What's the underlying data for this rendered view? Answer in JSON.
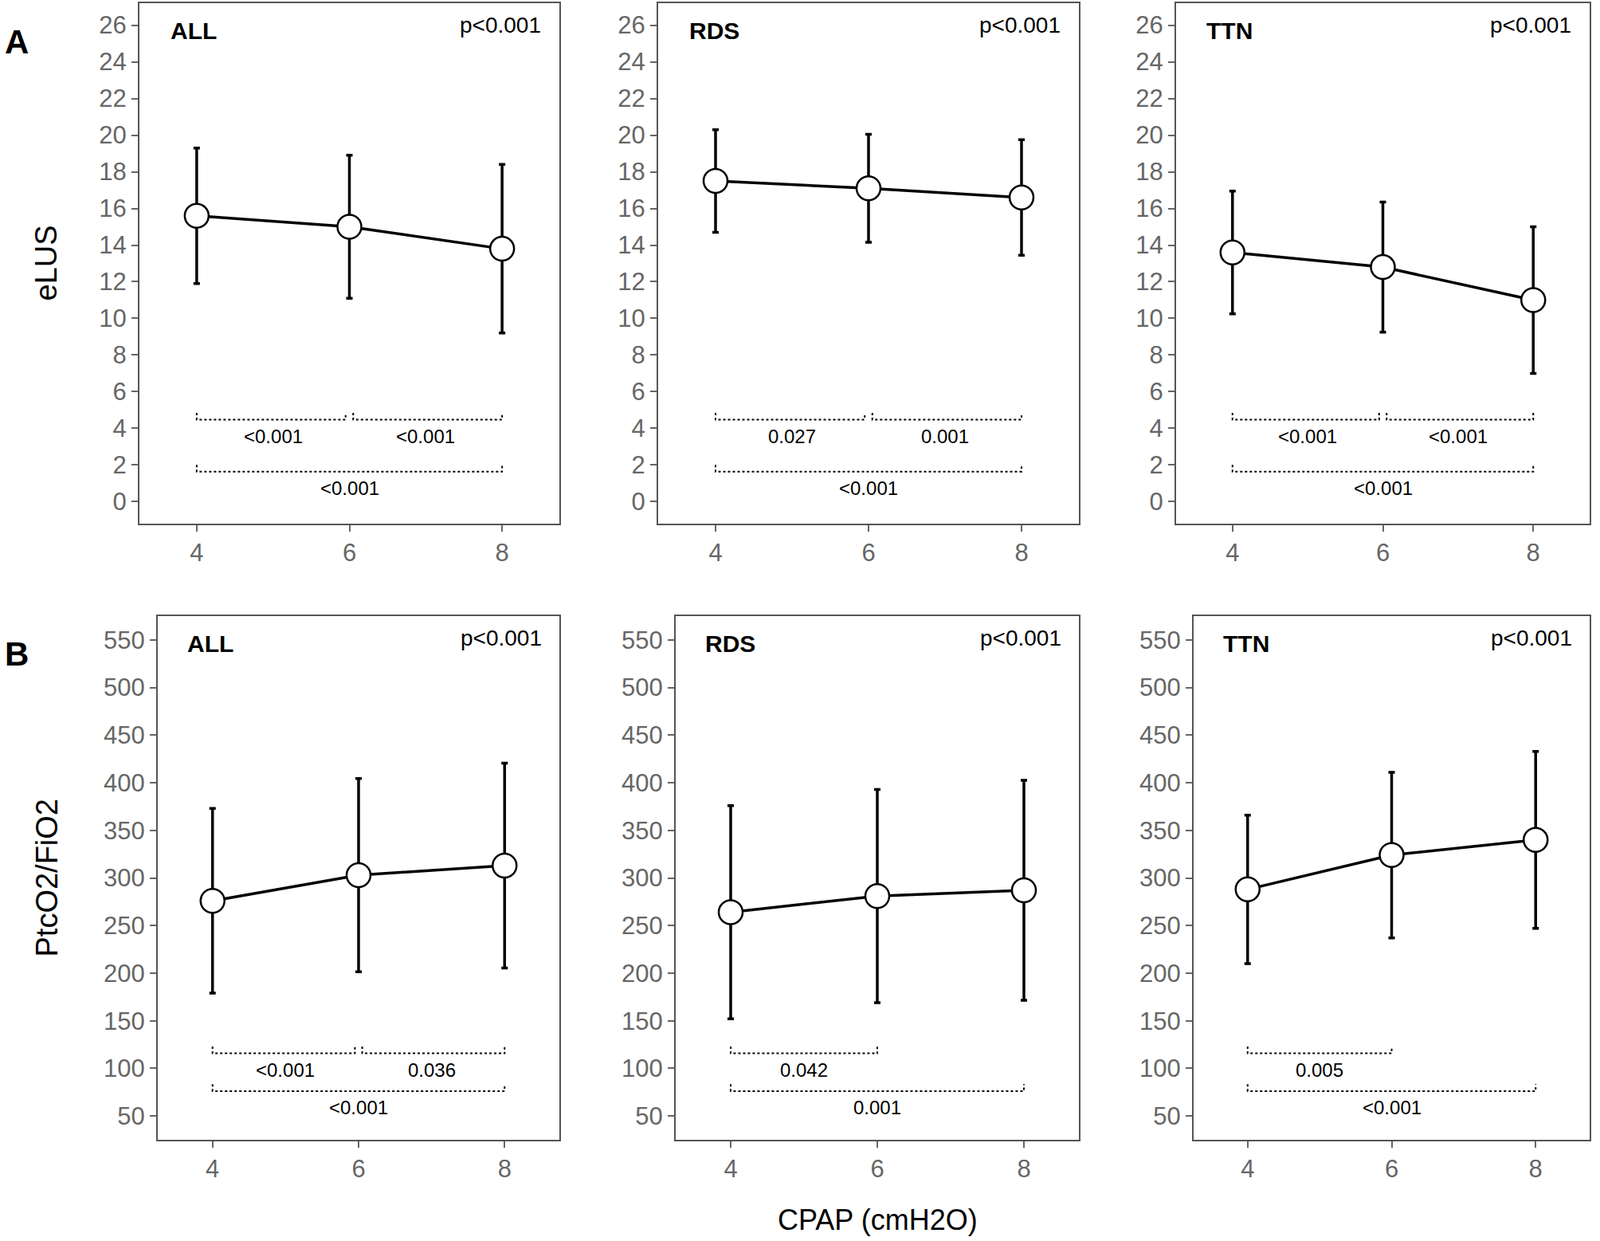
{
  "chart_data": [
    {
      "type": "line",
      "panel_label": "A",
      "y_label": "eLUS",
      "title": "ALL",
      "p_value": "p<0.001",
      "x": [
        4,
        6,
        8
      ],
      "values": [
        15.6,
        15.0,
        13.8
      ],
      "error": [
        3.7,
        3.9,
        4.6
      ],
      "color": "#000000",
      "marker": "circle",
      "grid": false,
      "xlim": [
        3.25,
        8.75
      ],
      "xticks": [
        4,
        6,
        8
      ],
      "ylim": [
        -1.2,
        27.2
      ],
      "yticks": [
        0,
        2,
        4,
        6,
        8,
        10,
        12,
        14,
        16,
        18,
        20,
        22,
        24,
        26
      ],
      "comparisons": [
        {
          "x": [
            4,
            6
          ],
          "label": "<0.001"
        },
        {
          "x": [
            6,
            8
          ],
          "label": "<0.001"
        },
        {
          "x": [
            4,
            8
          ],
          "label": "<0.001"
        }
      ]
    },
    {
      "type": "line",
      "title": "RDS",
      "p_value": "p<0.001",
      "x": [
        4,
        6,
        8
      ],
      "values": [
        17.5,
        17.1,
        16.6
      ],
      "error": [
        2.8,
        2.95,
        3.15
      ],
      "color": "#000000",
      "marker": "circle",
      "grid": false,
      "xlim": [
        3.25,
        8.75
      ],
      "xticks": [
        4,
        6,
        8
      ],
      "ylim": [
        -1.2,
        27.2
      ],
      "yticks": [
        0,
        2,
        4,
        6,
        8,
        10,
        12,
        14,
        16,
        18,
        20,
        22,
        24,
        26
      ],
      "comparisons": [
        {
          "x": [
            4,
            6
          ],
          "label": "0.027"
        },
        {
          "x": [
            6,
            8
          ],
          "label": "0.001"
        },
        {
          "x": [
            4,
            8
          ],
          "label": "<0.001"
        }
      ]
    },
    {
      "type": "line",
      "title": "TTN",
      "p_value": "p<0.001",
      "x": [
        4,
        6,
        8
      ],
      "values": [
        13.6,
        12.8,
        11.0
      ],
      "error": [
        3.35,
        3.55,
        4.0
      ],
      "color": "#000000",
      "marker": "circle",
      "grid": false,
      "xlim": [
        3.25,
        8.75
      ],
      "xticks": [
        4,
        6,
        8
      ],
      "ylim": [
        -1.2,
        27.2
      ],
      "yticks": [
        0,
        2,
        4,
        6,
        8,
        10,
        12,
        14,
        16,
        18,
        20,
        22,
        24,
        26
      ],
      "comparisons": [
        {
          "x": [
            4,
            6
          ],
          "label": "<0.001"
        },
        {
          "x": [
            6,
            8
          ],
          "label": "<0.001"
        },
        {
          "x": [
            4,
            8
          ],
          "label": "<0.001"
        }
      ]
    },
    {
      "type": "line",
      "panel_label": "B",
      "y_label": "PtcO2/FiO2",
      "title": "ALL",
      "p_value": "p<0.001",
      "x": [
        4,
        6,
        8
      ],
      "values": [
        276,
        303,
        313
      ],
      "error": [
        97,
        101.5,
        107.5
      ],
      "color": "#000000",
      "marker": "circle",
      "grid": false,
      "xlim": [
        3.25,
        8.75
      ],
      "xticks": [
        4,
        6,
        8
      ],
      "ylim": [
        25,
        575
      ],
      "yticks": [
        50,
        100,
        150,
        200,
        250,
        300,
        350,
        400,
        450,
        500,
        550
      ],
      "comparisons": [
        {
          "x": [
            4,
            6
          ],
          "label": "<0.001"
        },
        {
          "x": [
            6,
            8
          ],
          "label": "0.036"
        },
        {
          "x": [
            4,
            8
          ],
          "label": "<0.001"
        }
      ]
    },
    {
      "type": "line",
      "x_label": "CPAP (cmH2O)",
      "title": "RDS",
      "p_value": "p<0.001",
      "x": [
        4,
        6,
        8
      ],
      "values": [
        264,
        281,
        287
      ],
      "error": [
        112,
        112,
        115.5
      ],
      "color": "#000000",
      "marker": "circle",
      "grid": false,
      "xlim": [
        3.25,
        8.75
      ],
      "xticks": [
        4,
        6,
        8
      ],
      "ylim": [
        25,
        575
      ],
      "yticks": [
        50,
        100,
        150,
        200,
        250,
        300,
        350,
        400,
        450,
        500,
        550
      ],
      "comparisons": [
        {
          "x": [
            4,
            6
          ],
          "label": "0.042"
        },
        {
          "x": [
            4,
            8
          ],
          "label": "0.001"
        }
      ]
    },
    {
      "type": "line",
      "title": "TTN",
      "p_value": "p<0.001",
      "x": [
        4,
        6,
        8
      ],
      "values": [
        288,
        324,
        340
      ],
      "error": [
        78,
        87,
        93
      ],
      "color": "#000000",
      "marker": "circle",
      "grid": false,
      "xlim": [
        3.25,
        8.75
      ],
      "xticks": [
        4,
        6,
        8
      ],
      "ylim": [
        25,
        575
      ],
      "yticks": [
        50,
        100,
        150,
        200,
        250,
        300,
        350,
        400,
        450,
        500,
        550
      ],
      "comparisons": [
        {
          "x": [
            4,
            6
          ],
          "label": "0.005"
        },
        {
          "x": [
            4,
            8
          ],
          "label": "<0.001"
        }
      ]
    }
  ]
}
